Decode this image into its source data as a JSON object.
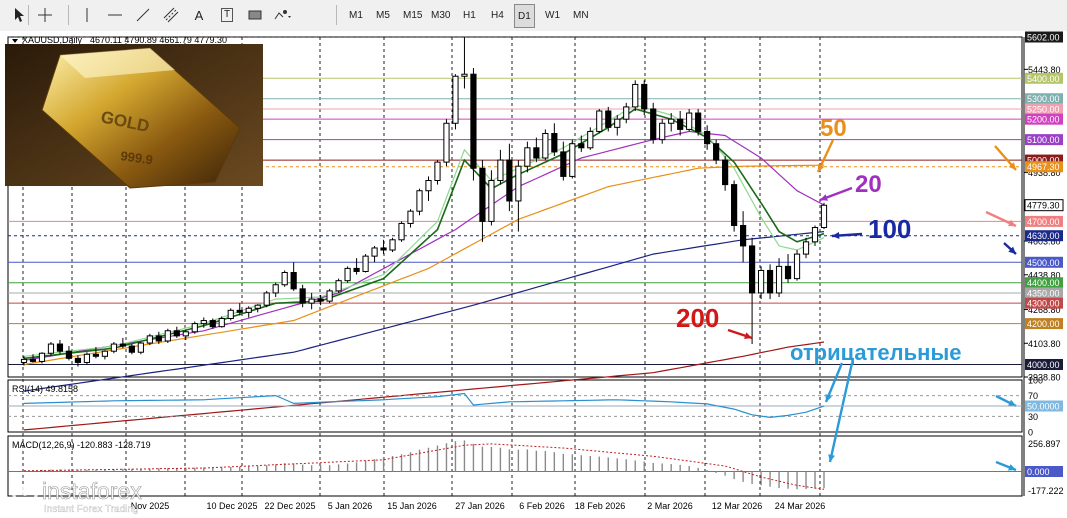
{
  "toolbar": {
    "tool_icons": [
      "cursor-icon",
      "crosshair-icon",
      "vertical-line-icon",
      "horizontal-line-icon",
      "trendline-icon",
      "channel-icon",
      "text-icon",
      "label-icon",
      "rectangle-icon",
      "shapes-icon"
    ],
    "text_tool": "A",
    "label_tool": "T",
    "timeframes": [
      "M1",
      "M5",
      "M15",
      "M30",
      "H1",
      "H4",
      "D1",
      "W1",
      "MN"
    ],
    "active_timeframe": "D1"
  },
  "chart_data": {
    "type": "candlestick",
    "title": "XAUUSD,Daily",
    "ohlc_text": "4670.11 4790.89 4661.79 4779.30",
    "price_range": [
      3938.8,
      5602.0
    ],
    "price_ticks": [
      "5443.80",
      "4938.80",
      "4603.80",
      "4438.80",
      "4268.80",
      "4103.80",
      "3938.80"
    ],
    "date_labels": [
      "Nov 2025",
      "10 Dec 2025",
      "22 Dec 2025",
      "5 Jan 2026",
      "15 Jan 2026",
      "27 Jan 2026",
      "6 Feb 2026",
      "18 Feb 2026",
      "2 Mar 2026",
      "12 Mar 2026",
      "24 Mar 2026"
    ],
    "levels": [
      {
        "price": 5602.0,
        "label": "5602.00",
        "color": "#1a1a1a",
        "style": "dash"
      },
      {
        "price": 5400.0,
        "label": "5400.00",
        "color": "#b6c56a",
        "style": "solid"
      },
      {
        "price": 5300.0,
        "label": "5300.00",
        "color": "#7fb0b0",
        "style": "solid"
      },
      {
        "price": 5250.0,
        "label": "5250.00",
        "color": "#f0a0b0",
        "style": "solid"
      },
      {
        "price": 5200.0,
        "label": "5200.00",
        "color": "#d040c0",
        "style": "solid"
      },
      {
        "price": 5100.0,
        "label": "5100.00",
        "color": "#9a40c8",
        "style": "solid"
      },
      {
        "price": 5000.0,
        "label": "5000.00",
        "color": "#8b1a1a",
        "style": "solid"
      },
      {
        "price": 4967.3,
        "label": "4967.30",
        "color": "#e8901a",
        "style": "dash"
      },
      {
        "price": 4700.0,
        "label": "4700.00",
        "color": "#f08080",
        "style": "solid"
      },
      {
        "price": 4630.0,
        "label": "4630.00",
        "color": "#1a2a8a",
        "style": "dash"
      },
      {
        "price": 4500.0,
        "label": "4500.00",
        "color": "#4a58c8",
        "style": "solid"
      },
      {
        "price": 4400.0,
        "label": "4400.00",
        "color": "#40a040",
        "style": "solid"
      },
      {
        "price": 4350.0,
        "label": "4350.00",
        "color": "#a8a8a8",
        "style": "solid"
      },
      {
        "price": 4300.0,
        "label": "4300.00",
        "color": "#c04848",
        "style": "solid"
      },
      {
        "price": 4200.0,
        "label": "4200.00",
        "color": "#c08020",
        "style": "solid"
      },
      {
        "price": 4000.0,
        "label": "4000.00",
        "color": "#1a1a3a",
        "style": "solid"
      }
    ],
    "current_price": "4779.30",
    "candles": [
      [
        4010,
        4040,
        3995,
        4025
      ],
      [
        4025,
        4050,
        4010,
        4015
      ],
      [
        4015,
        4060,
        4005,
        4055
      ],
      [
        4055,
        4110,
        4040,
        4100
      ],
      [
        4100,
        4120,
        4050,
        4065
      ],
      [
        4065,
        4090,
        4020,
        4030
      ],
      [
        4030,
        4045,
        3990,
        4010
      ],
      [
        4010,
        4060,
        4000,
        4050
      ],
      [
        4050,
        4085,
        4030,
        4040
      ],
      [
        4040,
        4070,
        4025,
        4065
      ],
      [
        4065,
        4110,
        4055,
        4100
      ],
      [
        4100,
        4130,
        4080,
        4090
      ],
      [
        4090,
        4100,
        4050,
        4060
      ],
      [
        4060,
        4110,
        4050,
        4105
      ],
      [
        4105,
        4150,
        4095,
        4140
      ],
      [
        4140,
        4160,
        4100,
        4115
      ],
      [
        4115,
        4175,
        4105,
        4165
      ],
      [
        4165,
        4185,
        4130,
        4140
      ],
      [
        4140,
        4170,
        4120,
        4160
      ],
      [
        4160,
        4210,
        4150,
        4200
      ],
      [
        4200,
        4230,
        4180,
        4215
      ],
      [
        4215,
        4225,
        4175,
        4185
      ],
      [
        4185,
        4235,
        4180,
        4225
      ],
      [
        4225,
        4275,
        4215,
        4265
      ],
      [
        4265,
        4300,
        4240,
        4255
      ],
      [
        4255,
        4285,
        4230,
        4275
      ],
      [
        4275,
        4295,
        4255,
        4290
      ],
      [
        4290,
        4360,
        4280,
        4350
      ],
      [
        4350,
        4400,
        4330,
        4390
      ],
      [
        4390,
        4460,
        4380,
        4450
      ],
      [
        4450,
        4500,
        4360,
        4370
      ],
      [
        4370,
        4390,
        4280,
        4300
      ],
      [
        4300,
        4350,
        4270,
        4320
      ],
      [
        4320,
        4340,
        4290,
        4310
      ],
      [
        4310,
        4370,
        4300,
        4360
      ],
      [
        4360,
        4420,
        4350,
        4410
      ],
      [
        4410,
        4480,
        4400,
        4470
      ],
      [
        4470,
        4520,
        4440,
        4455
      ],
      [
        4455,
        4540,
        4450,
        4530
      ],
      [
        4530,
        4580,
        4500,
        4570
      ],
      [
        4570,
        4610,
        4540,
        4560
      ],
      [
        4560,
        4620,
        4550,
        4610
      ],
      [
        4610,
        4700,
        4600,
        4690
      ],
      [
        4690,
        4760,
        4670,
        4750
      ],
      [
        4750,
        4860,
        4730,
        4850
      ],
      [
        4850,
        4920,
        4800,
        4900
      ],
      [
        4900,
        5000,
        4880,
        4990
      ],
      [
        4990,
        5200,
        4970,
        5180
      ],
      [
        5180,
        5420,
        5150,
        5410
      ],
      [
        5410,
        5600,
        5350,
        5420
      ],
      [
        5420,
        5450,
        4900,
        4960
      ],
      [
        4960,
        5000,
        4600,
        4700
      ],
      [
        4700,
        4950,
        4680,
        4900
      ],
      [
        4900,
        5050,
        4880,
        5000
      ],
      [
        5000,
        5080,
        4750,
        4800
      ],
      [
        4800,
        5000,
        4650,
        4970
      ],
      [
        4970,
        5090,
        4940,
        5060
      ],
      [
        5060,
        5110,
        4990,
        5010
      ],
      [
        5010,
        5150,
        5000,
        5130
      ],
      [
        5130,
        5180,
        5020,
        5040
      ],
      [
        5040,
        5090,
        4900,
        4920
      ],
      [
        4920,
        5100,
        4910,
        5080
      ],
      [
        5080,
        5120,
        5040,
        5060
      ],
      [
        5060,
        5160,
        5050,
        5140
      ],
      [
        5140,
        5250,
        5130,
        5240
      ],
      [
        5240,
        5260,
        5140,
        5160
      ],
      [
        5160,
        5220,
        5120,
        5200
      ],
      [
        5200,
        5280,
        5180,
        5260
      ],
      [
        5260,
        5390,
        5240,
        5370
      ],
      [
        5370,
        5390,
        5220,
        5250
      ],
      [
        5250,
        5280,
        5080,
        5100
      ],
      [
        5100,
        5200,
        5080,
        5180
      ],
      [
        5180,
        5230,
        5140,
        5200
      ],
      [
        5200,
        5240,
        5120,
        5150
      ],
      [
        5150,
        5250,
        5140,
        5230
      ],
      [
        5230,
        5250,
        5120,
        5140
      ],
      [
        5140,
        5170,
        5050,
        5080
      ],
      [
        5080,
        5100,
        4980,
        5000
      ],
      [
        5000,
        5020,
        4850,
        4880
      ],
      [
        4880,
        4900,
        4650,
        4680
      ],
      [
        4680,
        4750,
        4500,
        4580
      ],
      [
        4580,
        4620,
        4100,
        4350
      ],
      [
        4350,
        4480,
        4320,
        4460
      ],
      [
        4460,
        4490,
        4320,
        4350
      ],
      [
        4350,
        4520,
        4330,
        4480
      ],
      [
        4480,
        4540,
        4400,
        4420
      ],
      [
        4420,
        4560,
        4410,
        4540
      ],
      [
        4540,
        4620,
        4520,
        4600
      ],
      [
        4600,
        4680,
        4580,
        4670
      ],
      [
        4670,
        4791,
        4662,
        4779
      ]
    ],
    "moving_averages": [
      {
        "period": "200",
        "color": "#a01818",
        "anchors": [
          [
            0,
            3680
          ],
          [
            70,
            3960
          ],
          [
            80,
            4040
          ],
          [
            85,
            4085
          ],
          [
            89,
            4110
          ]
        ]
      },
      {
        "period": "100",
        "color": "#1a237e",
        "anchors": [
          [
            0,
            3870
          ],
          [
            30,
            4060
          ],
          [
            50,
            4290
          ],
          [
            70,
            4540
          ],
          [
            80,
            4610
          ],
          [
            89,
            4650
          ]
        ]
      },
      {
        "period": "50",
        "color": "#e8901a",
        "anchors": [
          [
            0,
            4000
          ],
          [
            30,
            4215
          ],
          [
            45,
            4470
          ],
          [
            55,
            4710
          ],
          [
            65,
            4870
          ],
          [
            75,
            4960
          ],
          [
            80,
            4970
          ],
          [
            89,
            4975
          ]
        ]
      },
      {
        "period": "20",
        "color": "#a030c0",
        "anchors": [
          [
            0,
            4020
          ],
          [
            20,
            4165
          ],
          [
            35,
            4350
          ],
          [
            48,
            4660
          ],
          [
            55,
            4870
          ],
          [
            62,
            5010
          ],
          [
            70,
            5100
          ],
          [
            74,
            5140
          ],
          [
            78,
            5120
          ],
          [
            82,
            5010
          ],
          [
            86,
            4850
          ],
          [
            89,
            4780
          ]
        ]
      },
      {
        "period": "fast",
        "color": "#1a6a1a",
        "anchors": [
          [
            0,
            4030
          ],
          [
            10,
            4080
          ],
          [
            20,
            4190
          ],
          [
            28,
            4300
          ],
          [
            33,
            4310
          ],
          [
            40,
            4420
          ],
          [
            46,
            4660
          ],
          [
            49,
            5000
          ],
          [
            52,
            4860
          ],
          [
            55,
            4930
          ],
          [
            60,
            5030
          ],
          [
            65,
            5160
          ],
          [
            68,
            5250
          ],
          [
            72,
            5200
          ],
          [
            76,
            5110
          ],
          [
            79,
            4990
          ],
          [
            82,
            4790
          ],
          [
            84,
            4650
          ],
          [
            86,
            4600
          ],
          [
            89,
            4640
          ]
        ]
      },
      {
        "period": "fast-signal",
        "color": "#8fd88f",
        "anchors": [
          [
            0,
            4040
          ],
          [
            10,
            4090
          ],
          [
            20,
            4200
          ],
          [
            28,
            4320
          ],
          [
            33,
            4330
          ],
          [
            40,
            4440
          ],
          [
            46,
            4700
          ],
          [
            49,
            5050
          ],
          [
            52,
            4900
          ],
          [
            55,
            4960
          ],
          [
            60,
            5060
          ],
          [
            65,
            5190
          ],
          [
            68,
            5270
          ],
          [
            72,
            5220
          ],
          [
            76,
            5120
          ],
          [
            79,
            4960
          ],
          [
            82,
            4720
          ],
          [
            84,
            4580
          ],
          [
            86,
            4560
          ],
          [
            89,
            4620
          ]
        ]
      }
    ],
    "rsi": {
      "label": "RSI(14) 49.8158",
      "levels": [
        "70",
        "50.0000",
        "30"
      ],
      "axis_ticks": [
        "100",
        "70",
        "30",
        "0"
      ],
      "range": [
        0,
        100
      ],
      "anchors": [
        [
          0,
          55
        ],
        [
          10,
          60
        ],
        [
          20,
          62
        ],
        [
          28,
          70
        ],
        [
          30,
          55
        ],
        [
          34,
          58
        ],
        [
          40,
          62
        ],
        [
          46,
          68
        ],
        [
          49,
          74
        ],
        [
          50,
          52
        ],
        [
          54,
          58
        ],
        [
          60,
          60
        ],
        [
          66,
          62
        ],
        [
          72,
          58
        ],
        [
          76,
          54
        ],
        [
          79,
          44
        ],
        [
          81,
          33
        ],
        [
          83,
          28
        ],
        [
          85,
          32
        ],
        [
          87,
          38
        ],
        [
          89,
          49.8
        ]
      ]
    },
    "macd": {
      "label": "MACD(12,26,9) -120.883 -128.719",
      "axis_ticks": [
        "256.897",
        "0.000",
        "-177.222"
      ],
      "range": [
        -177.222,
        256.897
      ],
      "histogram": [
        8,
        10,
        12,
        14,
        16,
        15,
        13,
        12,
        14,
        16,
        18,
        20,
        20,
        21,
        22,
        24,
        25,
        26,
        27,
        28,
        30,
        30,
        31,
        33,
        35,
        37,
        40,
        45,
        52,
        60,
        58,
        50,
        45,
        44,
        46,
        52,
        58,
        66,
        76,
        88,
        100,
        112,
        125,
        140,
        158,
        172,
        188,
        205,
        220,
        225,
        200,
        180,
        178,
        172,
        160,
        158,
        160,
        150,
        148,
        140,
        128,
        125,
        118,
        112,
        108,
        102,
        95,
        88,
        80,
        72,
        62,
        58,
        54,
        48,
        40,
        26,
        10,
        -10,
        -30,
        -55,
        -75,
        -90,
        -100,
        -110,
        -120,
        -125,
        -128,
        -127,
        -125,
        -121
      ],
      "signal_anchors": [
        [
          0,
          5
        ],
        [
          20,
          25
        ],
        [
          40,
          85
        ],
        [
          49,
          190
        ],
        [
          52,
          200
        ],
        [
          60,
          170
        ],
        [
          70,
          110
        ],
        [
          78,
          40
        ],
        [
          82,
          -40
        ],
        [
          86,
          -100
        ],
        [
          89,
          -129
        ]
      ]
    },
    "annotations": [
      {
        "text": "50",
        "color": "#e8901a"
      },
      {
        "text": "20",
        "color": "#a030c0"
      },
      {
        "text": "100",
        "color": "#1a2aa0"
      },
      {
        "text": "200",
        "color": "#d01818"
      },
      {
        "text": "отрицательные",
        "color": "#2a9ad8"
      }
    ]
  },
  "watermark": {
    "brand": "instaforex",
    "tagline": "Instant Forex Trading"
  },
  "inset": {
    "engraving_top": "GOLD",
    "engraving_bottom": "999.9"
  }
}
